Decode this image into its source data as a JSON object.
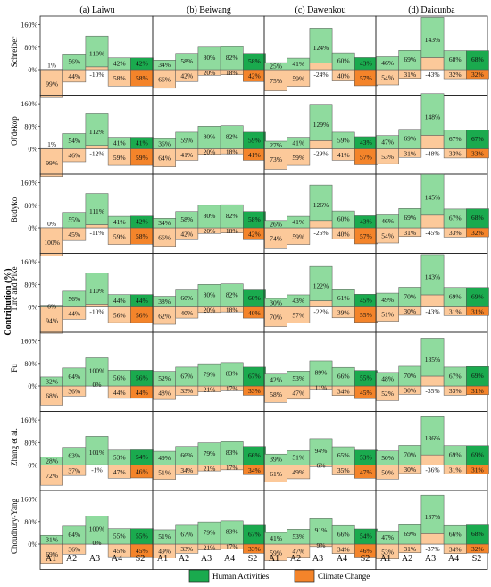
{
  "chart_data": {
    "type": "bar",
    "layout": "small multiples, 7 rows x 4 columns",
    "ylabel": "Contribution (%)",
    "y_ticks": [
      "0%",
      "80%",
      "160%"
    ],
    "ylim": [
      -45,
      160
    ],
    "categories": [
      "A1",
      "A2",
      "A3",
      "A4",
      "S2"
    ],
    "legend": {
      "position": "bottom-right",
      "items": [
        {
          "label": "Human Activities",
          "color": "#1aaa4e"
        },
        {
          "label": "Climate Change",
          "color": "#f4842a"
        }
      ]
    },
    "colors": {
      "human_light": "#8fdb9e",
      "human_dark": "#1aaa4e",
      "climate_light": "#fcc99a",
      "climate_dark": "#f4842a"
    },
    "columns": [
      "(a) Laiwu",
      "(b) Beiwang",
      "(c) Dawenkou",
      "(d) Daicunba"
    ],
    "rows": [
      "Schreiber",
      "Ol'dekop",
      "Budyko",
      "Turc and Pike",
      "Fu",
      "Zhang et al.",
      "Choudhury-Yang"
    ],
    "panels": [
      [
        {
          "human": [
            1,
            56,
            110,
            42,
            42
          ],
          "climate": [
            99,
            44,
            -10,
            58,
            58
          ]
        },
        {
          "human": [
            34,
            58,
            80,
            82,
            58
          ],
          "climate": [
            66,
            42,
            20,
            18,
            42
          ]
        },
        {
          "human": [
            25,
            41,
            124,
            60,
            43
          ],
          "climate": [
            75,
            59,
            -24,
            40,
            57
          ]
        },
        {
          "human": [
            46,
            69,
            143,
            68,
            68
          ],
          "climate": [
            54,
            31,
            -43,
            32,
            32
          ]
        }
      ],
      [
        {
          "human": [
            1,
            54,
            112,
            41,
            41
          ],
          "climate": [
            99,
            46,
            -12,
            59,
            59
          ]
        },
        {
          "human": [
            36,
            59,
            80,
            82,
            59
          ],
          "climate": [
            64,
            41,
            20,
            18,
            41
          ]
        },
        {
          "human": [
            27,
            41,
            129,
            59,
            43
          ],
          "climate": [
            73,
            59,
            -29,
            41,
            57
          ]
        },
        {
          "human": [
            47,
            69,
            148,
            67,
            67
          ],
          "climate": [
            53,
            31,
            -48,
            33,
            33
          ]
        }
      ],
      [
        {
          "human": [
            0,
            55,
            111,
            41,
            42
          ],
          "climate": [
            100,
            45,
            -11,
            59,
            58
          ]
        },
        {
          "human": [
            34,
            58,
            80,
            82,
            58
          ],
          "climate": [
            66,
            42,
            20,
            18,
            42
          ]
        },
        {
          "human": [
            26,
            41,
            126,
            60,
            43
          ],
          "climate": [
            74,
            59,
            -26,
            40,
            57
          ]
        },
        {
          "human": [
            46,
            69,
            145,
            67,
            68
          ],
          "climate": [
            54,
            31,
            -45,
            33,
            32
          ]
        }
      ],
      [
        {
          "human": [
            6,
            56,
            110,
            44,
            44
          ],
          "climate": [
            94,
            44,
            -10,
            56,
            56
          ]
        },
        {
          "human": [
            38,
            60,
            80,
            82,
            60
          ],
          "climate": [
            62,
            40,
            20,
            18,
            40
          ]
        },
        {
          "human": [
            30,
            43,
            122,
            61,
            45
          ],
          "climate": [
            70,
            57,
            -22,
            39,
            55
          ]
        },
        {
          "human": [
            49,
            70,
            143,
            69,
            69
          ],
          "climate": [
            51,
            30,
            -43,
            31,
            31
          ]
        }
      ],
      [
        {
          "human": [
            32,
            64,
            100,
            56,
            56
          ],
          "climate": [
            68,
            36,
            0,
            44,
            44
          ]
        },
        {
          "human": [
            52,
            67,
            79,
            83,
            67
          ],
          "climate": [
            48,
            33,
            21,
            17,
            33
          ]
        },
        {
          "human": [
            42,
            53,
            89,
            66,
            55
          ],
          "climate": [
            58,
            47,
            11,
            34,
            45
          ]
        },
        {
          "human": [
            48,
            70,
            135,
            67,
            69
          ],
          "climate": [
            52,
            30,
            -35,
            33,
            31
          ]
        }
      ],
      [
        {
          "human": [
            28,
            63,
            101,
            53,
            54
          ],
          "climate": [
            72,
            37,
            -1,
            47,
            46
          ]
        },
        {
          "human": [
            49,
            66,
            79,
            83,
            66
          ],
          "climate": [
            51,
            34,
            21,
            17,
            34
          ]
        },
        {
          "human": [
            39,
            51,
            94,
            65,
            53
          ],
          "climate": [
            61,
            49,
            6,
            35,
            47
          ]
        },
        {
          "human": [
            50,
            70,
            136,
            69,
            69
          ],
          "climate": [
            50,
            30,
            -36,
            31,
            31
          ]
        }
      ],
      [
        {
          "human": [
            31,
            64,
            100,
            55,
            55
          ],
          "climate": [
            69,
            36,
            0,
            45,
            45
          ]
        },
        {
          "human": [
            51,
            67,
            79,
            83,
            67
          ],
          "climate": [
            49,
            33,
            21,
            17,
            33
          ]
        },
        {
          "human": [
            41,
            53,
            91,
            66,
            54
          ],
          "climate": [
            59,
            47,
            9,
            34,
            46
          ]
        },
        {
          "human": [
            47,
            69,
            137,
            66,
            68
          ],
          "climate": [
            53,
            31,
            -37,
            34,
            32
          ]
        }
      ]
    ]
  }
}
